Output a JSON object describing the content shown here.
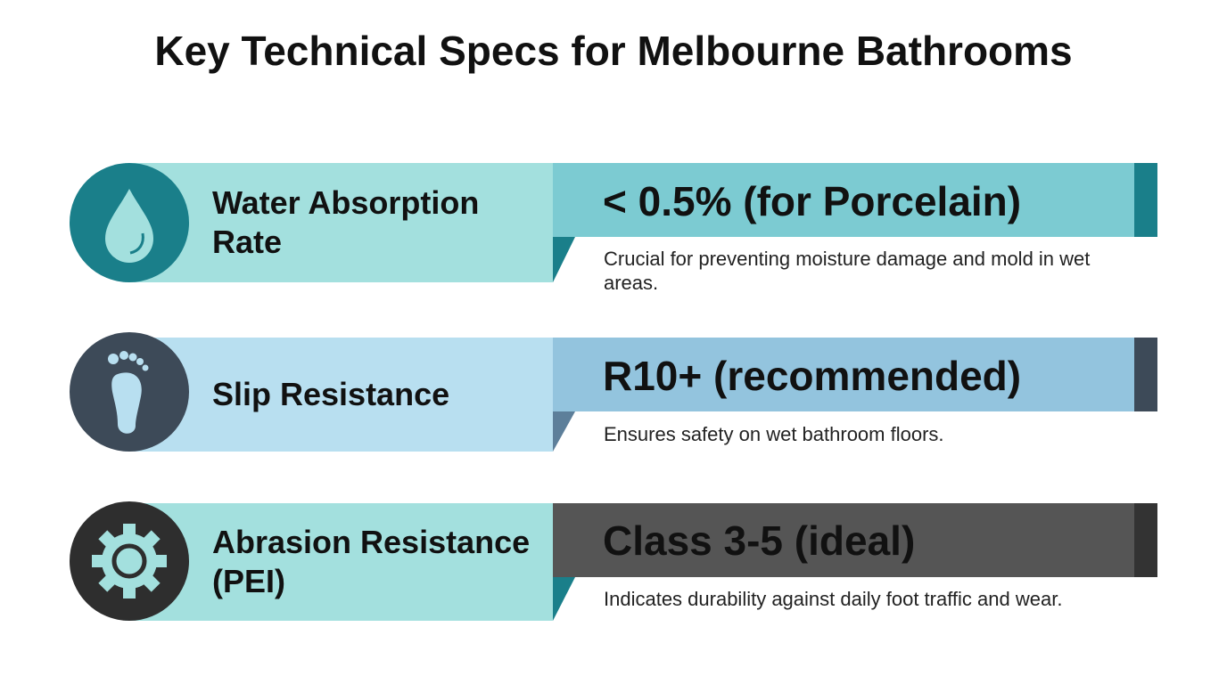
{
  "header": {
    "title": "Key Technical Specs for Melbourne Bathrooms"
  },
  "specs": [
    {
      "label": "Water Absorption Rate",
      "value": "< 0.5% (for Porcelain)",
      "description": "Crucial for preventing moisture damage and mold in wet areas."
    },
    {
      "label": "Slip Resistance",
      "value": "R10+ (recommended)",
      "description": "Ensures safety on wet bathroom floors."
    },
    {
      "label": "Abrasion Resistance (PEI)",
      "value": "Class 3-5 (ideal)",
      "description": "Indicates durability against daily foot traffic and wear."
    }
  ]
}
